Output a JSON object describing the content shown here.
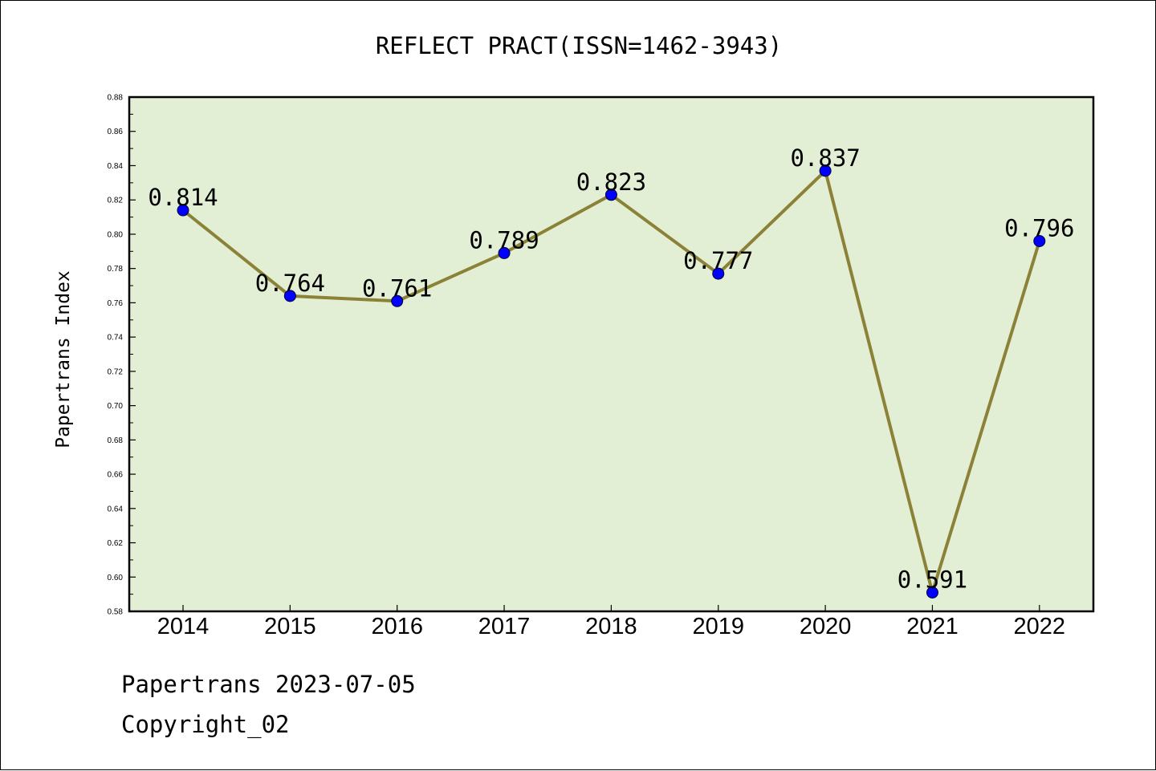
{
  "chart_data": {
    "type": "line",
    "title": "REFLECT PRACT(ISSN=1462-3943)",
    "xlabel": "",
    "ylabel": "Papertrans Index",
    "categories": [
      "2014",
      "2015",
      "2016",
      "2017",
      "2018",
      "2019",
      "2020",
      "2021",
      "2022"
    ],
    "values": [
      0.814,
      0.764,
      0.761,
      0.789,
      0.823,
      0.777,
      0.837,
      0.591,
      0.796
    ],
    "data_labels": [
      "0.814",
      "0.764",
      "0.761",
      "0.789",
      "0.823",
      "0.777",
      "0.837",
      "0.591",
      "0.796"
    ],
    "ylim": [
      0.58,
      0.88
    ],
    "yticks": [
      0.58,
      0.6,
      0.62,
      0.64,
      0.66,
      0.68,
      0.7,
      0.72,
      0.74,
      0.76,
      0.78,
      0.8,
      0.82,
      0.84,
      0.86,
      0.88
    ],
    "ytick_labels": [
      "0.58",
      "0.60",
      "0.62",
      "0.64",
      "0.66",
      "0.68",
      "0.70",
      "0.72",
      "0.74",
      "0.76",
      "0.78",
      "0.80",
      "0.82",
      "0.84",
      "0.86",
      "0.88"
    ],
    "grid": false,
    "colors": {
      "plot_background": "#e2efd5",
      "line": "#8b8238",
      "marker": "#0000ff"
    }
  },
  "footer": {
    "line1": "Papertrans 2023-07-05",
    "line2": "Copyright_02"
  }
}
